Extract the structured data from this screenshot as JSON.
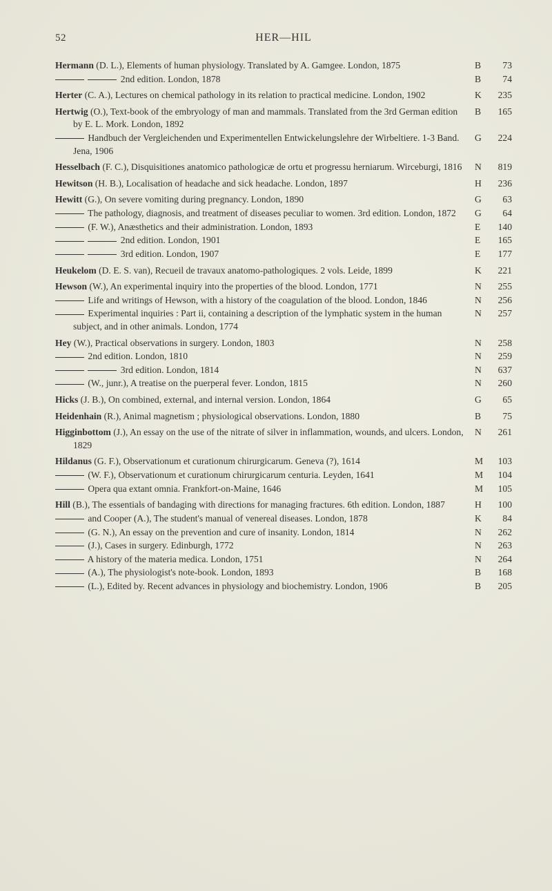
{
  "page": {
    "number": "52",
    "header": "HER—HIL"
  },
  "entries": [
    {
      "t": "<span class='bold'>Hermann</span> (D. L.), Elements of human physiology. Translated by A. Gamgee. London, 1875",
      "L": "B",
      "N": "73",
      "lvl": 0
    },
    {
      "t": "<span class='emdash'></span> <span class='emdash'></span> 2nd edition. London, 1878",
      "L": "B",
      "N": "74",
      "lvl": 0
    },
    {
      "gap": true
    },
    {
      "t": "<span class='bold'>Herter</span> (C. A.), Lectures on chemical pathology in its relation to practical medicine. London, 1902",
      "L": "K",
      "N": "235",
      "lvl": 0
    },
    {
      "gap": true
    },
    {
      "t": "<span class='bold'>Hertwig</span> (O.), Text-book of the embryology of man and mammals. Translated from the 3rd German edition by E. L. Mork. London, 1892",
      "L": "B",
      "N": "165",
      "lvl": 0
    },
    {
      "t": "<span class='emdash'></span> Handbuch der Vergleichenden und Experimentellen Entwickelungslehre der Wirbeltiere. 1-3 Band. Jena, 1906",
      "L": "G",
      "N": "224",
      "lvl": 0
    },
    {
      "gap": true
    },
    {
      "t": "<span class='bold'>Hesselbach</span> (F. C.), Disquisitiones anatomico pathologicæ de ortu et progressu herniarum. Wirceburgi, 1816",
      "L": "N",
      "N": "819",
      "lvl": 0
    },
    {
      "gap": true
    },
    {
      "t": "<span class='bold'>Hewitson</span> (H. B.), Localisation of headache and sick headache. London, 1897",
      "L": "H",
      "N": "236",
      "lvl": 0
    },
    {
      "gap": true
    },
    {
      "t": "<span class='bold'>Hewitt</span> (G.), On severe vomiting during pregnancy. London, 1890",
      "L": "G",
      "N": "63",
      "lvl": 0
    },
    {
      "t": "<span class='emdash'></span> The pathology, diagnosis, and treatment of diseases peculiar to women. 3rd edition. London, 1872",
      "L": "G",
      "N": "64",
      "lvl": 0
    },
    {
      "t": "<span class='emdash'></span> (F. W.), Anæsthetics and their administration. London, 1893",
      "L": "E",
      "N": "140",
      "lvl": 0
    },
    {
      "t": "<span class='emdash'></span> <span class='emdash'></span> 2nd edition. London, 1901",
      "L": "E",
      "N": "165",
      "lvl": 0
    },
    {
      "t": "<span class='emdash'></span> <span class='emdash'></span> 3rd edition. London, 1907",
      "L": "E",
      "N": "177",
      "lvl": 0
    },
    {
      "gap": true
    },
    {
      "t": "<span class='bold'>Heukelom</span> (D. E. S. van), Recueil de travaux anatomo-pathologiques. 2 vols. Leide, 1899",
      "L": "K",
      "N": "221",
      "lvl": 0
    },
    {
      "gap": true
    },
    {
      "t": "<span class='bold'>Hewson</span> (W.), An experimental inquiry into the properties of the blood. London, 1771",
      "L": "N",
      "N": "255",
      "lvl": 0
    },
    {
      "t": "<span class='emdash'></span> Life and writings of Hewson, with a history of the coagulation of the blood. London, 1846",
      "L": "N",
      "N": "256",
      "lvl": 0
    },
    {
      "t": "<span class='emdash'></span> Experimental inquiries : Part ii, containing a description of the lymphatic system in the human subject, and in other animals. London, 1774",
      "L": "N",
      "N": "257",
      "lvl": 0
    },
    {
      "gap": true
    },
    {
      "t": "<span class='bold'>Hey</span> (W.), Practical observations in surgery. London, 1803",
      "L": "N",
      "N": "258",
      "lvl": 0
    },
    {
      "t": "<span class='emdash'></span> 2nd edition. London, 1810",
      "L": "N",
      "N": "259",
      "lvl": 0
    },
    {
      "t": "<span class='emdash'></span> <span class='emdash'></span> 3rd edition. London, 1814",
      "L": "N",
      "N": "637",
      "lvl": 0
    },
    {
      "t": "<span class='emdash'></span> (W., junr.), A treatise on the puerperal fever. London, 1815",
      "L": "N",
      "N": "260",
      "lvl": 0
    },
    {
      "gap": true
    },
    {
      "t": "<span class='bold'>Hicks</span> (J. B.), On combined, external, and internal version. London, 1864",
      "L": "G",
      "N": "65",
      "lvl": 0
    },
    {
      "gap": true
    },
    {
      "t": "<span class='bold'>Heidenhain</span> (R.), Animal magnetism ; physiological observations. London, 1880",
      "L": "B",
      "N": "75",
      "lvl": 0
    },
    {
      "gap": true
    },
    {
      "t": "<span class='bold'>Higginbottom</span> (J.), An essay on the use of the nitrate of silver in inflammation, wounds, and ulcers. London, 1829",
      "L": "N",
      "N": "261",
      "lvl": 0
    },
    {
      "gap": true
    },
    {
      "t": "<span class='bold'>Hildanus</span> (G. F.), Observationum et curationum chirurgicarum. Geneva (?), 1614",
      "L": "M",
      "N": "103",
      "lvl": 0
    },
    {
      "t": "<span class='emdash'></span> (W. F.), Observationum et curationum chirurgicarum centuria. Leyden, 1641",
      "L": "M",
      "N": "104",
      "lvl": 0
    },
    {
      "t": "<span class='emdash'></span> Opera qua extant omnia. Frankfort-on-Maine, 1646",
      "L": "M",
      "N": "105",
      "lvl": 0
    },
    {
      "gap": true
    },
    {
      "t": "<span class='bold'>Hill</span> (B.), The essentials of bandaging with directions for managing fractures. 6th edition. London, 1887",
      "L": "H",
      "N": "100",
      "lvl": 0
    },
    {
      "t": "<span class='emdash'></span> and Cooper (A.), The student's manual of venereal diseases. London, 1878",
      "L": "K",
      "N": "84",
      "lvl": 0
    },
    {
      "t": "<span class='emdash'></span> (G. N.), An essay on the prevention and cure of insanity. London, 1814",
      "L": "N",
      "N": "262",
      "lvl": 0
    },
    {
      "t": "<span class='emdash'></span> (J.), Cases in surgery. Edinburgh, 1772",
      "L": "N",
      "N": "263",
      "lvl": 0
    },
    {
      "t": "<span class='emdash'></span> A history of the materia medica. London, 1751",
      "L": "N",
      "N": "264",
      "lvl": 0
    },
    {
      "t": "<span class='emdash'></span> (A.), The physiologist's note-book. London, 1893",
      "L": "B",
      "N": "168",
      "lvl": 0
    },
    {
      "t": "<span class='emdash'></span> (L.), Edited by. Recent advances in physiology and biochemistry. London, 1906",
      "L": "B",
      "N": "205",
      "lvl": 0
    }
  ]
}
